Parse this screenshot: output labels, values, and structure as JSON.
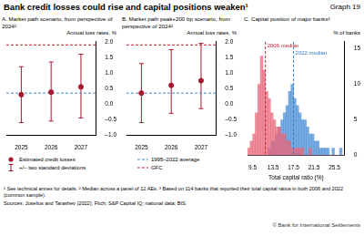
{
  "title": "Bank credit losses could rise and capital positions weaken¹",
  "graph_number": "Graph 19",
  "chart_data": [
    {
      "type": "line",
      "title": "A. Market path scenario, from perspective of 2024²",
      "y_label": "Annual loss rates, %",
      "categories": [
        "2025",
        "2026",
        "2027"
      ],
      "ylim": [
        -1,
        2
      ],
      "yticks": [
        {
          "value": 2,
          "label": "2.0"
        },
        1.5,
        {
          "value": 1,
          "label": "1.0"
        },
        0.5,
        {
          "value": 0,
          "label": "0.0"
        },
        {
          "value": -0.5,
          "label": "–0.5"
        },
        {
          "value": -1,
          "label": "–1.0"
        }
      ],
      "grid": false,
      "legend": "bottom",
      "series": [
        {
          "name": "Estimated credit losses",
          "type": "scatter",
          "marker": "circle",
          "color": "#a6192e",
          "values": [
            0.3,
            0.38,
            0.55
          ]
        },
        {
          "name": "+/– two standard deviations",
          "type": "errorbar",
          "color": "#a6192e",
          "low": [
            -0.6,
            -0.55,
            -0.45
          ],
          "high": [
            1.2,
            1.35,
            1.6
          ]
        },
        {
          "name": "1995–2022 average",
          "type": "hline",
          "line_style": "dashed",
          "color": "#3c8dd4",
          "value": 0.35
        },
        {
          "name": "GFC",
          "type": "hline",
          "line_style": "dashed",
          "color": "#c8202f",
          "value": 1.9
        }
      ]
    },
    {
      "type": "line",
      "title": "B. Market path peak+200 bp scenario, from perspective of 2024²",
      "y_label": "Annual loss rates, %",
      "categories": [
        "2025",
        "2026",
        "2027"
      ],
      "ylim": [
        -1,
        2
      ],
      "yticks": [
        {
          "value": 2,
          "label": "2.0"
        },
        1.5,
        {
          "value": 1,
          "label": "1.0"
        },
        0.5,
        {
          "value": 0,
          "label": "0.0"
        },
        {
          "value": -0.5,
          "label": "–0.5"
        },
        {
          "value": -1,
          "label": "–1.0"
        }
      ],
      "grid": false,
      "series": [
        {
          "name": "Estimated credit losses",
          "type": "scatter",
          "marker": "circle",
          "color": "#a6192e",
          "values": [
            0.35,
            0.6,
            0.75
          ]
        },
        {
          "name": "+/– two standard deviations",
          "type": "errorbar",
          "color": "#a6192e",
          "low": [
            -0.6,
            -0.3,
            -0.15
          ],
          "high": [
            1.3,
            1.75,
            1.95
          ]
        },
        {
          "name": "1995–2022 average",
          "type": "hline",
          "line_style": "dashed",
          "color": "#3c8dd4",
          "value": 0.35
        },
        {
          "name": "GFC",
          "type": "hline",
          "line_style": "dashed",
          "color": "#c8202f",
          "value": 1.9
        }
      ]
    },
    {
      "type": "histogram",
      "title": "C. Capital position of major banks³",
      "y_label": "% of banks",
      "x_label": "Total capital ratio (%)",
      "bins": [
        8.5,
        9,
        9.5,
        10,
        10.5,
        11,
        11.5,
        12,
        12.5,
        13,
        13.5,
        14,
        14.5,
        15,
        15.5,
        16,
        16.5,
        17,
        17.5,
        18,
        18.5,
        19,
        19.5,
        20,
        20.5,
        21,
        21.5,
        22,
        22.5,
        23,
        23.5,
        24,
        24.5,
        25,
        25.5,
        26,
        26.5,
        27,
        27.5
      ],
      "series": [
        {
          "color": "#e8677a",
          "values": [
            1,
            2,
            3,
            6,
            10,
            14,
            12,
            9,
            8,
            6,
            5,
            4,
            4,
            3,
            3,
            2,
            2,
            1,
            1,
            1,
            1,
            1,
            0,
            0,
            1,
            0,
            0,
            0,
            0,
            0,
            0,
            0,
            0,
            0,
            0,
            0,
            0,
            0
          ]
        },
        {
          "color": "#4b8fd6",
          "values": [
            0,
            0,
            0,
            0,
            0,
            0,
            0,
            0,
            1,
            2,
            2,
            3,
            4,
            5,
            6,
            7,
            9,
            10,
            8,
            7,
            6,
            5,
            5,
            4,
            3,
            3,
            2,
            2,
            1,
            1,
            1,
            1,
            0,
            1,
            0,
            0,
            1,
            0
          ]
        }
      ],
      "medians": [
        {
          "value": 12,
          "label": "2006 median",
          "color": "#c8202f"
        },
        {
          "value": 17.5,
          "label": "2022 median",
          "color": "#2f7ac4"
        }
      ],
      "xlim": [
        8.5,
        27.5
      ],
      "xticks": [
        9.5,
        13.5,
        17.5,
        21.5,
        25.5
      ],
      "ylim": [
        0,
        16
      ],
      "yticks": [
        0,
        5,
        10,
        15
      ],
      "grid": false
    }
  ],
  "footnotes": [
    "¹ See technical annex for details.",
    "² Median across a panel of 12 AEs.",
    "³ Based on 114 banks that reported their total capital ratios in both 2006 and 2022 (common sample)."
  ],
  "sources": "Sources: Juselius and Tarashev (2022); Fitch; S&P Capital IQ; national data; BIS.",
  "copyright": "© Bank for International Settlements"
}
